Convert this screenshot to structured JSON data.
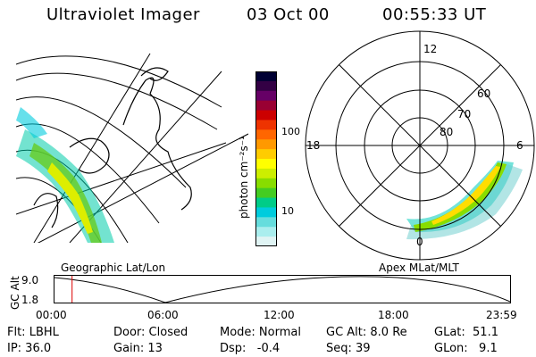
{
  "header": {
    "instrument": "Ultraviolet Imager",
    "date": "03 Oct 00",
    "time": "00:55:33 UT"
  },
  "colorbar": {
    "unit_label": "photon cm⁻²s⁻¹",
    "ticks": [
      "100",
      "10"
    ],
    "colors": [
      "#000033",
      "#330044",
      "#660066",
      "#990033",
      "#cc0000",
      "#ee3300",
      "#ff6600",
      "#ff9900",
      "#ffcc00",
      "#ffff00",
      "#ccee00",
      "#88dd00",
      "#44cc22",
      "#00cc88",
      "#00ccdd",
      "#66dddd",
      "#aaeeee",
      "#e0f4f4"
    ]
  },
  "polar": {
    "mlt_labels": {
      "top": "12",
      "left": "18",
      "right": "6",
      "bottom": "0"
    },
    "lat_labels": [
      "60",
      "70",
      "80"
    ]
  },
  "map_labels": {
    "left": "Geographic Lat/Lon",
    "right": "Apex MLat/MLT"
  },
  "alt_plot": {
    "ylabel": "GC Alt",
    "yticks": [
      "9.0",
      "1.8"
    ],
    "xticks": [
      "00:00",
      "06:00",
      "12:00",
      "18:00",
      "23:59"
    ],
    "marker_time": "00:55:33",
    "marker_color": "#dd0000"
  },
  "status": {
    "row1": {
      "filter": "Flt: LBHL",
      "door": "Door: Closed",
      "mode": "Mode: Normal",
      "gc_alt": "GC Alt: 8.0 Re",
      "glat": "GLat:  51.1"
    },
    "row2": {
      "ip": "IP: 36.0",
      "gain": "Gain: 13",
      "dsp": "Dsp:   -0.4",
      "seq": "Seq: 39",
      "glon": "GLon:   9.1"
    }
  }
}
